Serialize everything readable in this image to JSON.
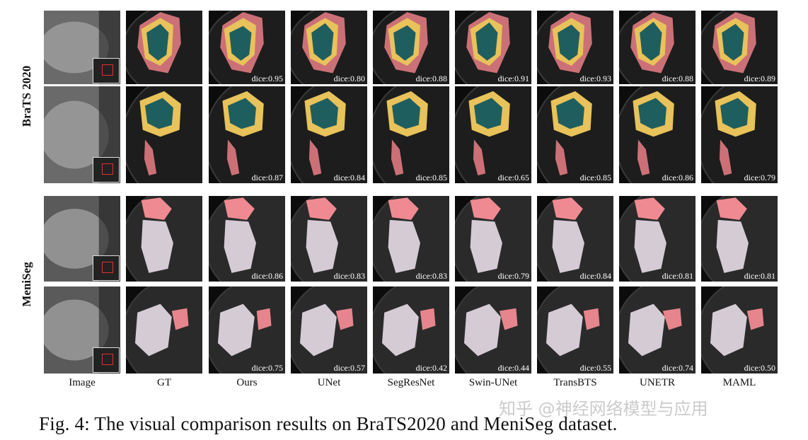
{
  "figure": {
    "rows": [
      {
        "dataset": "BraTS 2020",
        "scans": [
          {
            "dice": [
              "dice:0.95",
              "dice:0.80",
              "dice:0.88",
              "dice:0.91",
              "dice:0.93",
              "dice:0.88",
              "dice:0.89"
            ]
          },
          {
            "dice": [
              "dice:0.87",
              "dice:0.84",
              "dice:0.85",
              "dice:0.65",
              "dice:0.85",
              "dice:0.86",
              "dice:0.79"
            ]
          }
        ]
      },
      {
        "dataset": "MeniSeg",
        "scans": [
          {
            "dice": [
              "dice:0.86",
              "dice:0.83",
              "dice:0.83",
              "dice:0.79",
              "dice:0.84",
              "dice:0.81",
              "dice:0.81"
            ]
          },
          {
            "dice": [
              "dice:0.75",
              "dice:0.57",
              "dice:0.42",
              "dice:0.44",
              "dice:0.55",
              "dice:0.74",
              "dice:0.50"
            ]
          }
        ]
      }
    ],
    "columns": [
      "Image",
      "GT",
      "Ours",
      "UNet",
      "SegResNet",
      "Swin-UNet",
      "TransBTS",
      "UNETR",
      "MAML"
    ],
    "caption": "Fig. 4: The visual comparison results on BraTS2020 and MeniSeg dataset.",
    "watermark": "知乎 @神经网络模型与应用",
    "colors": {
      "edema": "#e07a82",
      "core": "#1f5e5e",
      "enhancing": "#e8c25a",
      "tumor_pink": "#f08a92",
      "meni_region": "#e8dde8"
    }
  }
}
